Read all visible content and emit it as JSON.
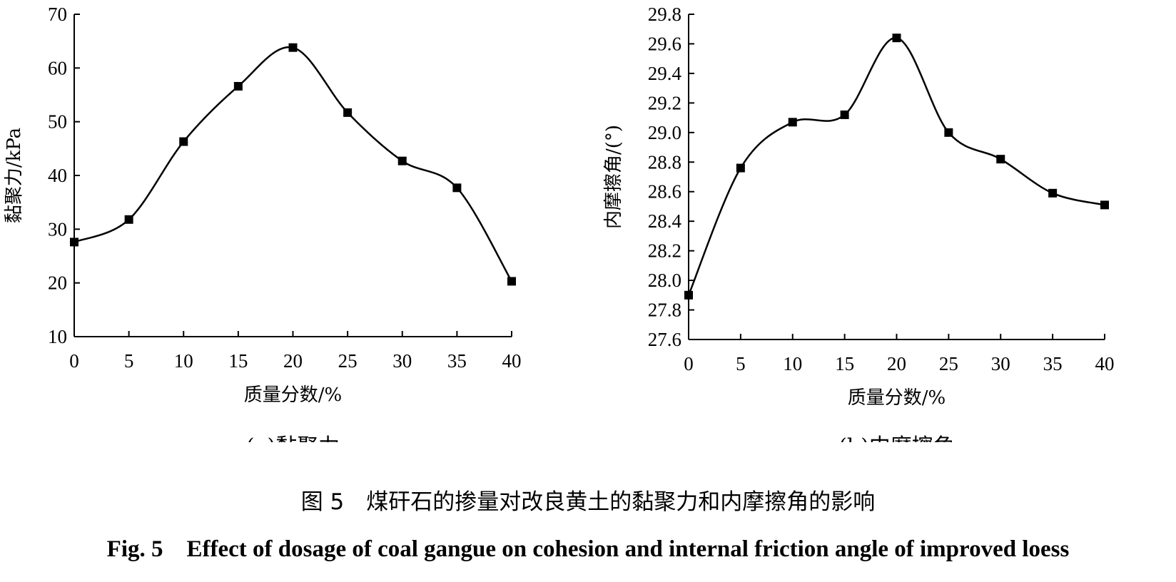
{
  "chart_data": [
    {
      "type": "line",
      "subtitle": "(a)黏聚力",
      "xlabel": "质量分数/%",
      "ylabel": "黏聚力/kPa",
      "x": [
        0,
        5,
        10,
        15,
        20,
        25,
        30,
        35,
        40
      ],
      "series": [
        {
          "values": [
            27.6,
            31.8,
            46.3,
            56.6,
            63.8,
            51.7,
            42.7,
            37.7,
            20.3
          ]
        }
      ],
      "xlim": [
        0,
        40
      ],
      "ylim": [
        10,
        70
      ],
      "xticks": [
        "0",
        "5",
        "10",
        "15",
        "20",
        "25",
        "30",
        "35",
        "40"
      ],
      "yticks": [
        "10",
        "20",
        "30",
        "40",
        "50",
        "60",
        "70"
      ],
      "marker": "square",
      "smooth": true,
      "grid": false
    },
    {
      "type": "line",
      "subtitle": "(b)内摩擦角",
      "xlabel": "质量分数/%",
      "ylabel": "内摩擦角/(°)",
      "x": [
        0,
        5,
        10,
        15,
        20,
        25,
        30,
        35,
        40
      ],
      "series": [
        {
          "values": [
            27.9,
            28.76,
            29.07,
            29.12,
            29.64,
            29.0,
            28.82,
            28.59,
            28.51
          ]
        }
      ],
      "xlim": [
        0,
        40
      ],
      "ylim": [
        27.6,
        29.8
      ],
      "xticks": [
        "0",
        "5",
        "10",
        "15",
        "20",
        "25",
        "30",
        "35",
        "40"
      ],
      "yticks": [
        "27.6",
        "27.8",
        "28.0",
        "28.2",
        "28.4",
        "28.6",
        "28.8",
        "29.0",
        "29.2",
        "29.4",
        "29.6",
        "29.8"
      ],
      "marker": "square",
      "smooth": true,
      "grid": false
    }
  ],
  "caption_cn": "图 5　煤矸石的掺量对改良黄土的黏聚力和内摩擦角的影响",
  "caption_en": "Fig. 5　Effect of dosage of coal gangue on cohesion and internal friction angle of improved loess"
}
